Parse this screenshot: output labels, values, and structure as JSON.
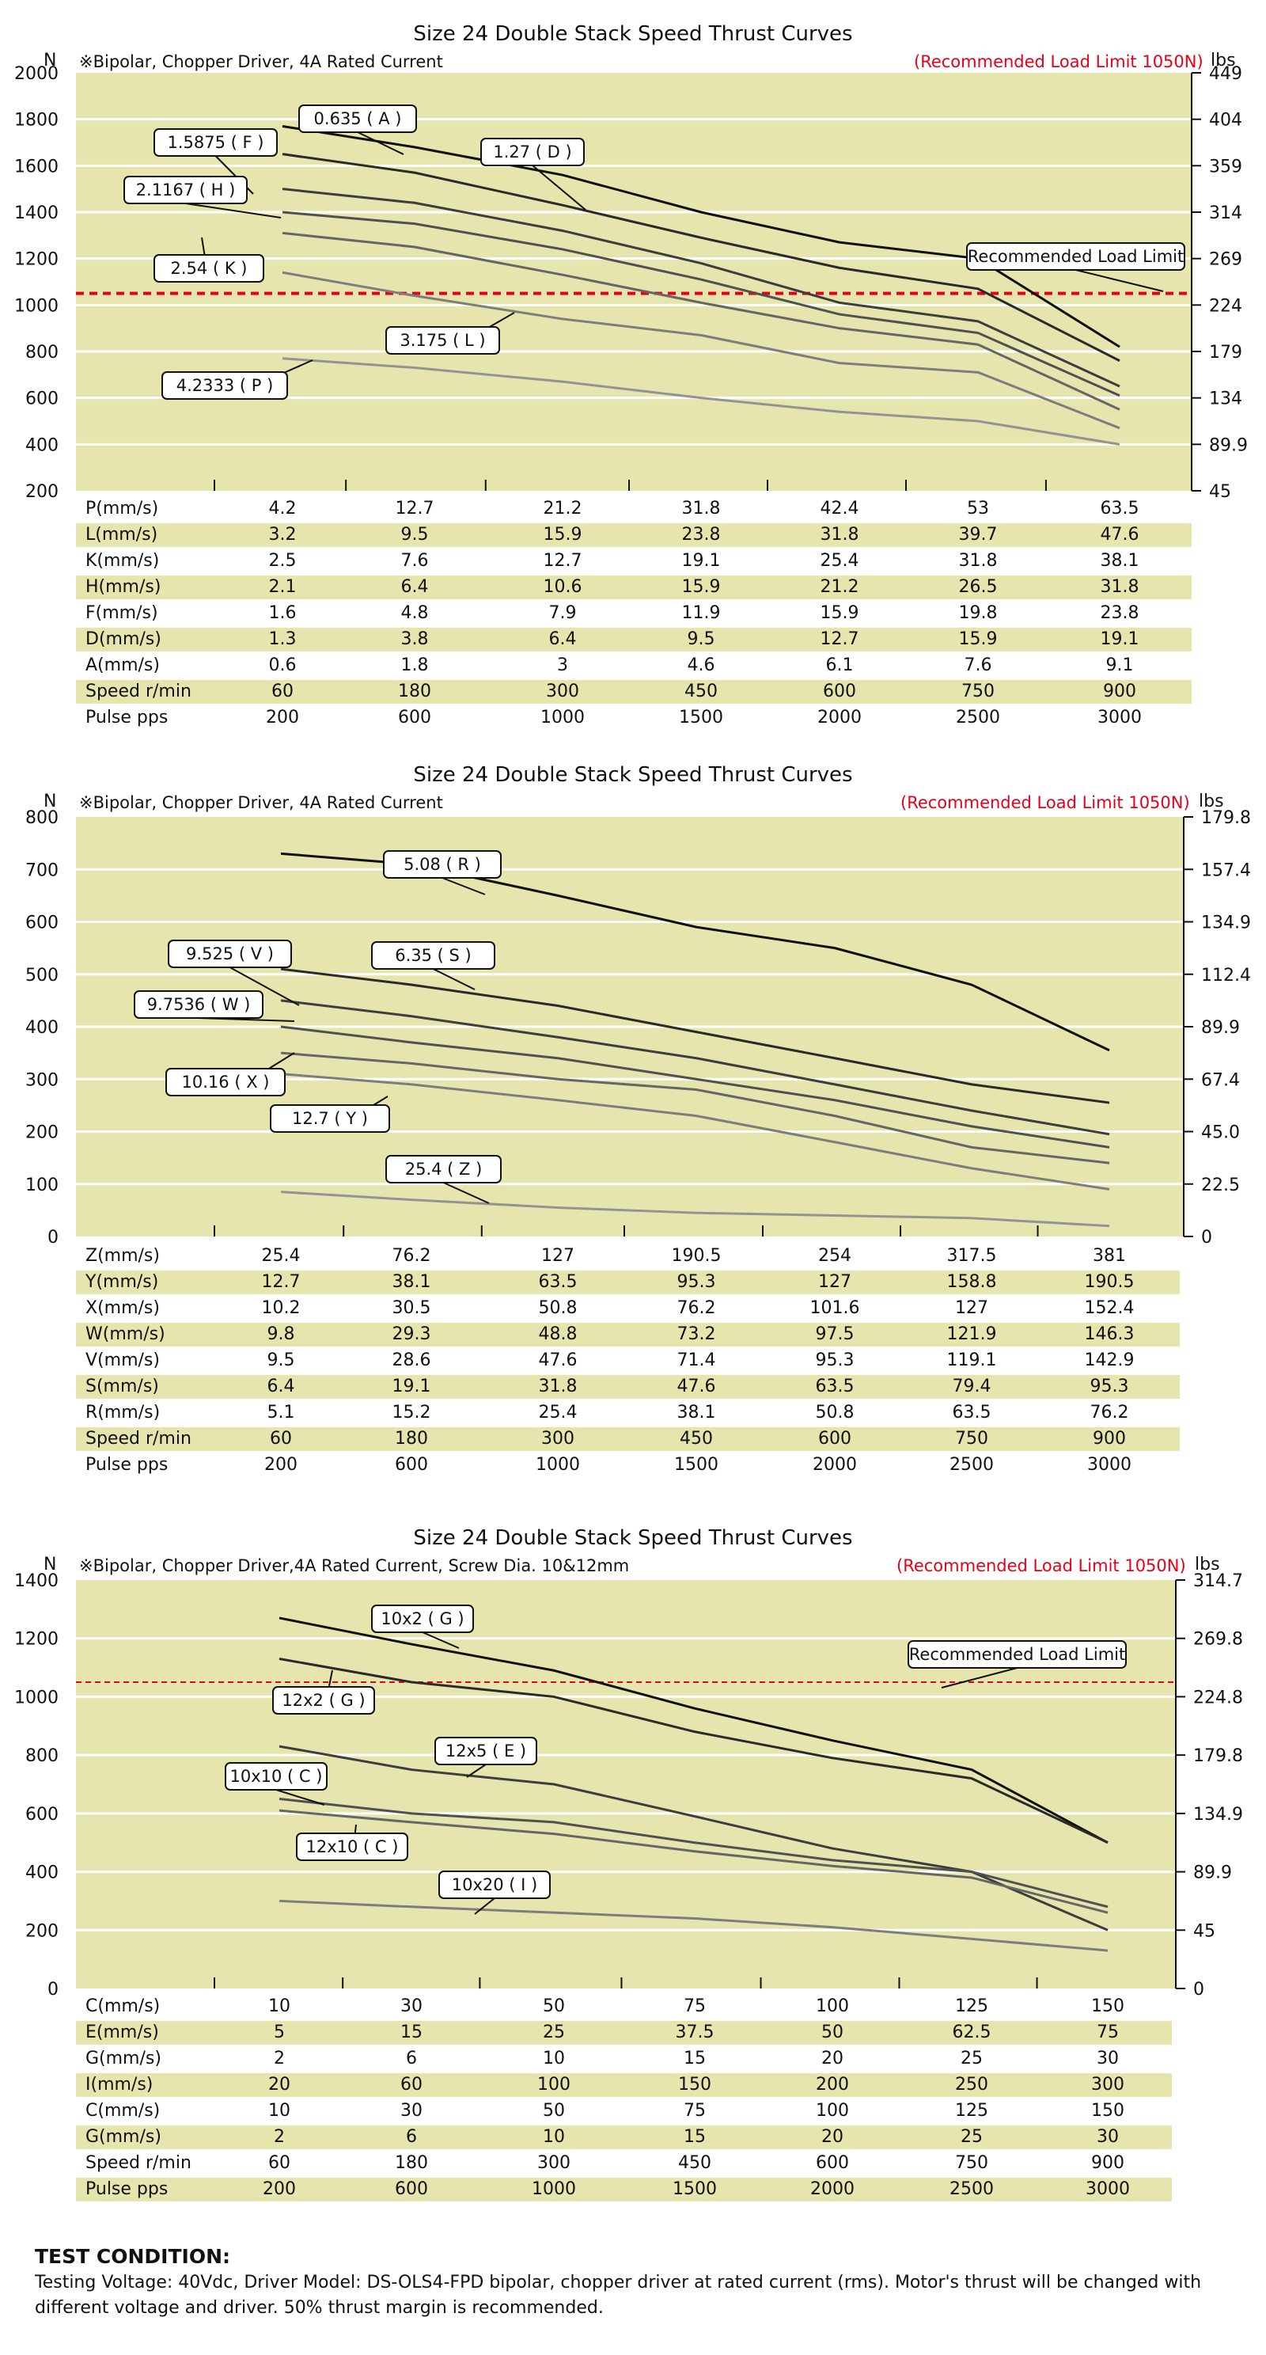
{
  "charts": [
    {
      "title": "Size 24 Double Stack Speed Thrust Curves",
      "subtitle": "※Bipolar, Chopper Driver, 4A Rated Current",
      "limit_text": "(Recommended Load Limit 1050N)",
      "y_unit_left": "N",
      "y_unit_right": "lbs",
      "left_ticks": [
        "2000",
        "1800",
        "1600",
        "1400",
        "1200",
        "1000",
        "800",
        "600",
        "400",
        "200"
      ],
      "right_ticks": [
        "449",
        "404",
        "359",
        "314",
        "269",
        "224",
        "179",
        "134",
        "89.9",
        "45"
      ],
      "limit_label": "Recommended Load Limit",
      "table": [
        {
          "label": "P(mm/s)",
          "values": [
            "4.2",
            "12.7",
            "21.2",
            "31.8",
            "42.4",
            "53",
            "63.5"
          ]
        },
        {
          "label": "L(mm/s)",
          "values": [
            "3.2",
            "9.5",
            "15.9",
            "23.8",
            "31.8",
            "39.7",
            "47.6"
          ]
        },
        {
          "label": "K(mm/s)",
          "values": [
            "2.5",
            "7.6",
            "12.7",
            "19.1",
            "25.4",
            "31.8",
            "38.1"
          ]
        },
        {
          "label": "H(mm/s)",
          "values": [
            "2.1",
            "6.4",
            "10.6",
            "15.9",
            "21.2",
            "26.5",
            "31.8"
          ]
        },
        {
          "label": "F(mm/s)",
          "values": [
            "1.6",
            "4.8",
            "7.9",
            "11.9",
            "15.9",
            "19.8",
            "23.8"
          ]
        },
        {
          "label": "D(mm/s)",
          "values": [
            "1.3",
            "3.8",
            "6.4",
            "9.5",
            "12.7",
            "15.9",
            "19.1"
          ]
        },
        {
          "label": "A(mm/s)",
          "values": [
            "0.6",
            "1.8",
            "3",
            "4.6",
            "6.1",
            "7.6",
            "9.1"
          ]
        },
        {
          "label": "Speed r/min",
          "values": [
            "60",
            "180",
            "300",
            "450",
            "600",
            "750",
            "900"
          ]
        },
        {
          "label": "Pulse  pps",
          "values": [
            "200",
            "600",
            "1000",
            "1500",
            "2000",
            "2500",
            "3000"
          ]
        }
      ],
      "curve_labels": [
        "0.635 ( A )",
        "1.5875 ( F )",
        "1.27 ( D )",
        "2.1167 ( H )",
        "2.54 ( K )",
        "3.175 ( L )",
        "4.2333 ( P )"
      ]
    },
    {
      "title": "Size 24 Double Stack Speed Thrust Curves",
      "subtitle": "※Bipolar, Chopper Driver, 4A Rated Current",
      "limit_text": "(Recommended Load Limit 1050N)",
      "y_unit_left": "N",
      "y_unit_right": "lbs",
      "left_ticks": [
        "800",
        "700",
        "600",
        "500",
        "400",
        "300",
        "200",
        "100",
        "0"
      ],
      "right_ticks": [
        "179.8",
        "157.4",
        "134.9",
        "112.4",
        "89.9",
        "67.4",
        "45.0",
        "22.5",
        "0"
      ],
      "table": [
        {
          "label": "Z(mm/s)",
          "values": [
            "25.4",
            "76.2",
            "127",
            "190.5",
            "254",
            "317.5",
            "381"
          ]
        },
        {
          "label": "Y(mm/s)",
          "values": [
            "12.7",
            "38.1",
            "63.5",
            "95.3",
            "127",
            "158.8",
            "190.5"
          ]
        },
        {
          "label": "X(mm/s)",
          "values": [
            "10.2",
            "30.5",
            "50.8",
            "76.2",
            "101.6",
            "127",
            "152.4"
          ]
        },
        {
          "label": "W(mm/s)",
          "values": [
            "9.8",
            "29.3",
            "48.8",
            "73.2",
            "97.5",
            "121.9",
            "146.3"
          ]
        },
        {
          "label": "V(mm/s)",
          "values": [
            "9.5",
            "28.6",
            "47.6",
            "71.4",
            "95.3",
            "119.1",
            "142.9"
          ]
        },
        {
          "label": "S(mm/s)",
          "values": [
            "6.4",
            "19.1",
            "31.8",
            "47.6",
            "63.5",
            "79.4",
            "95.3"
          ]
        },
        {
          "label": "R(mm/s)",
          "values": [
            "5.1",
            "15.2",
            "25.4",
            "38.1",
            "50.8",
            "63.5",
            "76.2"
          ]
        },
        {
          "label": "Speed r/min",
          "values": [
            "60",
            "180",
            "300",
            "450",
            "600",
            "750",
            "900"
          ]
        },
        {
          "label": "Pulse  pps",
          "values": [
            "200",
            "600",
            "1000",
            "1500",
            "2000",
            "2500",
            "3000"
          ]
        }
      ],
      "curve_labels": [
        "5.08 ( R )",
        "9.525 ( V )",
        "6.35 ( S )",
        "9.7536 ( W )",
        "10.16 ( X )",
        "12.7 ( Y )",
        "25.4 ( Z )"
      ]
    },
    {
      "title": "Size 24 Double Stack Speed Thrust Curves",
      "subtitle": "※Bipolar, Chopper Driver,4A Rated Current, Screw Dia. 10&12mm",
      "limit_text": "(Recommended Load Limit 1050N)",
      "y_unit_left": "N",
      "y_unit_right": "lbs",
      "left_ticks": [
        "1400",
        "1200",
        "1000",
        "800",
        "600",
        "400",
        "200",
        "0"
      ],
      "right_ticks": [
        "314.7",
        "269.8",
        "224.8",
        "179.8",
        "134.9",
        "89.9",
        "45",
        "0"
      ],
      "limit_label": "Recommended Load Limit",
      "table": [
        {
          "label": "C(mm/s)",
          "values": [
            "10",
            "30",
            "50",
            "75",
            "100",
            "125",
            "150"
          ]
        },
        {
          "label": "E(mm/s)",
          "values": [
            "5",
            "15",
            "25",
            "37.5",
            "50",
            "62.5",
            "75"
          ]
        },
        {
          "label": "G(mm/s)",
          "values": [
            "2",
            "6",
            "10",
            "15",
            "20",
            "25",
            "30"
          ]
        },
        {
          "label": "I(mm/s)",
          "values": [
            "20",
            "60",
            "100",
            "150",
            "200",
            "250",
            "300"
          ]
        },
        {
          "label": "C(mm/s)",
          "values": [
            "10",
            "30",
            "50",
            "75",
            "100",
            "125",
            "150"
          ]
        },
        {
          "label": "G(mm/s)",
          "values": [
            "2",
            "6",
            "10",
            "15",
            "20",
            "25",
            "30"
          ]
        },
        {
          "label": "Speed r/min",
          "values": [
            "60",
            "180",
            "300",
            "450",
            "600",
            "750",
            "900"
          ]
        },
        {
          "label": "Pulse  pps",
          "values": [
            "200",
            "600",
            "1000",
            "1500",
            "2000",
            "2500",
            "3000"
          ]
        }
      ],
      "curve_labels": [
        "10x2 ( G )",
        "12x2 ( G )",
        "12x5 ( E )",
        "10x10 ( C )",
        "12x10 ( C )",
        "10x20 ( I )"
      ]
    }
  ],
  "chart_data": [
    {
      "type": "line",
      "x_label_row": "Speed r/min",
      "x": [
        60,
        180,
        300,
        450,
        600,
        750,
        900
      ],
      "ylim": [
        200,
        2000
      ],
      "ylabel": "N",
      "ylabel_right": "lbs",
      "reference_line": {
        "value": 1050,
        "label": "Recommended Load Limit"
      },
      "series": [
        {
          "name": "0.635 ( A )",
          "values": [
            1770,
            1680,
            1560,
            1400,
            1270,
            1200,
            820
          ]
        },
        {
          "name": "1.27 ( D )",
          "values": [
            1650,
            1570,
            1430,
            1290,
            1160,
            1070,
            760
          ]
        },
        {
          "name": "1.5875 ( F )",
          "values": [
            1500,
            1440,
            1320,
            1180,
            1010,
            930,
            650
          ]
        },
        {
          "name": "2.1167 ( H )",
          "values": [
            1400,
            1350,
            1240,
            1110,
            960,
            880,
            610
          ]
        },
        {
          "name": "2.54 ( K )",
          "values": [
            1310,
            1250,
            1130,
            1010,
            900,
            830,
            550
          ]
        },
        {
          "name": "3.175 ( L )",
          "values": [
            1140,
            1040,
            940,
            870,
            750,
            710,
            470
          ]
        },
        {
          "name": "4.2333 ( P )",
          "values": [
            770,
            730,
            670,
            600,
            540,
            500,
            400
          ]
        }
      ]
    },
    {
      "type": "line",
      "x_label_row": "Speed r/min",
      "x": [
        60,
        180,
        300,
        450,
        600,
        750,
        900
      ],
      "ylim": [
        0,
        800
      ],
      "ylabel": "N",
      "ylabel_right": "lbs",
      "series": [
        {
          "name": "5.08 ( R )",
          "values": [
            730,
            710,
            650,
            590,
            550,
            480,
            355
          ]
        },
        {
          "name": "6.35 ( S )",
          "values": [
            510,
            480,
            440,
            390,
            340,
            290,
            255
          ]
        },
        {
          "name": "9.525 ( V )",
          "values": [
            450,
            420,
            380,
            340,
            290,
            240,
            195
          ]
        },
        {
          "name": "9.7536 ( W )",
          "values": [
            400,
            370,
            340,
            300,
            260,
            210,
            170
          ]
        },
        {
          "name": "10.16 ( X )",
          "values": [
            350,
            330,
            300,
            280,
            230,
            170,
            140
          ]
        },
        {
          "name": "12.7 ( Y )",
          "values": [
            310,
            290,
            260,
            230,
            180,
            130,
            90
          ]
        },
        {
          "name": "25.4 ( Z )",
          "values": [
            85,
            70,
            55,
            45,
            40,
            35,
            20
          ]
        }
      ]
    },
    {
      "type": "line",
      "x_label_row": "Speed r/min",
      "x": [
        60,
        180,
        300,
        450,
        600,
        750,
        900
      ],
      "ylim": [
        0,
        1400
      ],
      "ylabel": "N",
      "ylabel_right": "lbs",
      "reference_line": {
        "value": 1050,
        "label": "Recommended Load Limit"
      },
      "series": [
        {
          "name": "10x2 ( G )",
          "values": [
            1270,
            1180,
            1090,
            960,
            850,
            750,
            500
          ]
        },
        {
          "name": "12x2 ( G )",
          "values": [
            1130,
            1050,
            1000,
            880,
            790,
            720,
            500
          ]
        },
        {
          "name": "12x5 ( E )",
          "values": [
            830,
            750,
            700,
            590,
            480,
            400,
            200
          ]
        },
        {
          "name": "10x10 ( C )",
          "values": [
            650,
            600,
            570,
            500,
            440,
            400,
            280
          ]
        },
        {
          "name": "12x10 ( C )",
          "values": [
            610,
            570,
            530,
            470,
            420,
            380,
            260
          ]
        },
        {
          "name": "10x20 ( I )",
          "values": [
            300,
            280,
            260,
            240,
            210,
            170,
            130
          ]
        }
      ]
    }
  ],
  "test_condition": {
    "title": "TEST CONDITION:",
    "text": "Testing Voltage: 40Vdc, Driver Model: DS-OLS4-FPD bipolar, chopper driver at rated current (rms). Motor's thrust will be changed with different voltage and driver. 50% thrust margin is recommended."
  }
}
